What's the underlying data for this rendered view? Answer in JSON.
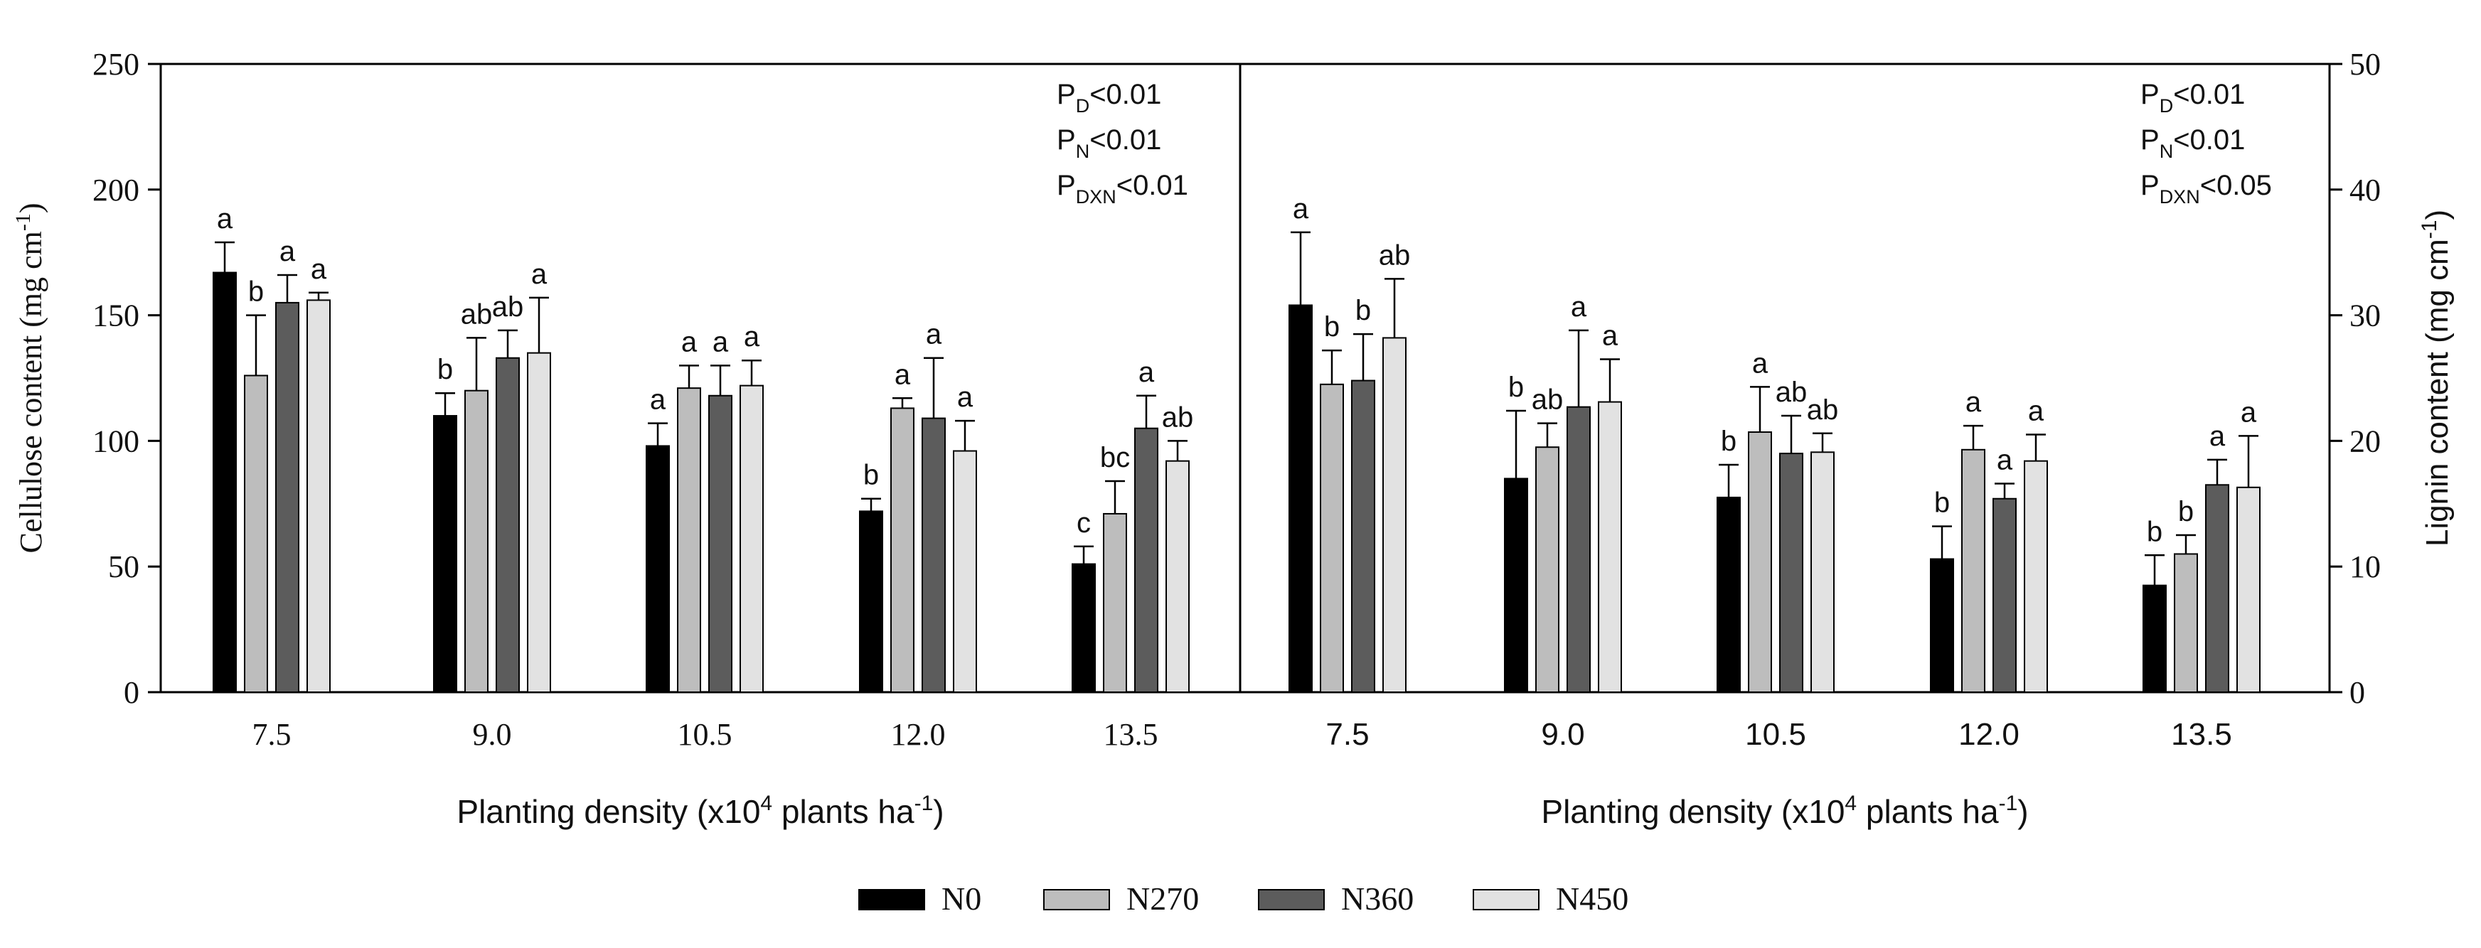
{
  "colors": {
    "N0": "#000000",
    "N270": "#bdbdbd",
    "N360": "#5c5c5c",
    "N450": "#e2e2e2",
    "axis": "#000000"
  },
  "legend": {
    "position": "bottom-center",
    "entries": [
      "N0",
      "N270",
      "N360",
      "N450"
    ]
  },
  "chart_data": [
    {
      "type": "bar",
      "panel": "left",
      "ylabel": "Cellulose content (mg cm",
      "ylabel_unit_sup": "-1",
      "ylabel_close": ")",
      "xlabel": "Planting density (x10",
      "xlabel_sup": "4",
      "xlabel_tail": " plants ha",
      "xlabel_tail_sup": "-1",
      "xlabel_close": ")",
      "ylim": [
        0,
        250
      ],
      "yticks": [
        0,
        50,
        100,
        150,
        200,
        250
      ],
      "ytick_labels": [
        "0",
        "50",
        "100",
        "150",
        "200",
        "250"
      ],
      "categories": [
        "7.5",
        "9.0",
        "10.5",
        "12.0",
        "13.5"
      ],
      "series": [
        {
          "name": "N0",
          "values": [
            167,
            110,
            98,
            72,
            51
          ],
          "errors": [
            12,
            9,
            9,
            5,
            7
          ],
          "letters": [
            "a",
            "b",
            "a",
            "b",
            "c"
          ]
        },
        {
          "name": "N270",
          "values": [
            126,
            120,
            121,
            113,
            71
          ],
          "errors": [
            24,
            21,
            9,
            4,
            13
          ],
          "letters": [
            "b",
            "ab",
            "a",
            "a",
            "bc"
          ]
        },
        {
          "name": "N360",
          "values": [
            155,
            133,
            118,
            109,
            105
          ],
          "errors": [
            11,
            11,
            12,
            24,
            13
          ],
          "letters": [
            "a",
            "ab",
            "a",
            "a",
            "a"
          ]
        },
        {
          "name": "N450",
          "values": [
            156,
            135,
            122,
            96,
            92
          ],
          "errors": [
            3,
            22,
            10,
            12,
            8
          ],
          "letters": [
            "a",
            "a",
            "a",
            "a",
            "ab"
          ]
        }
      ],
      "stats": [
        {
          "base": "P",
          "sub": "D",
          "rest": "<0.01"
        },
        {
          "base": "P",
          "sub": "N",
          "rest": "<0.01"
        },
        {
          "base": "P",
          "sub": "DXN",
          "rest": "<0.01"
        }
      ]
    },
    {
      "type": "bar",
      "panel": "right",
      "ylabel": "Lignin content (mg cm",
      "ylabel_unit_sup": "-1",
      "ylabel_close": ")",
      "xlabel": "Planting density (x10",
      "xlabel_sup": "4",
      "xlabel_tail": " plants ha",
      "xlabel_tail_sup": "-1",
      "xlabel_close": ")",
      "ylim": [
        0,
        50
      ],
      "yticks": [
        0,
        10,
        20,
        30,
        40,
        50
      ],
      "ytick_labels": [
        "0",
        "10",
        "20",
        "30",
        "40",
        "50"
      ],
      "categories": [
        "7.5",
        "9.0",
        "10.5",
        "12.0",
        "13.5"
      ],
      "series": [
        {
          "name": "N0",
          "values": [
            30.8,
            17.0,
            15.5,
            10.6,
            8.5
          ],
          "errors": [
            5.8,
            5.4,
            2.6,
            2.6,
            2.4
          ],
          "letters": [
            "a",
            "b",
            "b",
            "b",
            "b"
          ]
        },
        {
          "name": "N270",
          "values": [
            24.5,
            19.5,
            20.7,
            19.3,
            11.0
          ],
          "errors": [
            2.7,
            1.9,
            3.6,
            1.9,
            1.5
          ],
          "letters": [
            "b",
            "ab",
            "a",
            "a",
            "b"
          ]
        },
        {
          "name": "N360",
          "values": [
            24.8,
            22.7,
            19.0,
            15.4,
            16.5
          ],
          "errors": [
            3.7,
            6.1,
            3.0,
            1.2,
            2.0
          ],
          "letters": [
            "b",
            "a",
            "ab",
            "a",
            "a"
          ]
        },
        {
          "name": "N450",
          "values": [
            28.2,
            23.1,
            19.1,
            18.4,
            16.3
          ],
          "errors": [
            4.7,
            3.4,
            1.5,
            2.1,
            4.1
          ],
          "letters": [
            "ab",
            "a",
            "ab",
            "a",
            "a"
          ]
        }
      ],
      "stats": [
        {
          "base": "P",
          "sub": "D",
          "rest": "<0.01"
        },
        {
          "base": "P",
          "sub": "N",
          "rest": "<0.01"
        },
        {
          "base": "P",
          "sub": "DXN",
          "rest": "<0.05"
        }
      ]
    }
  ]
}
